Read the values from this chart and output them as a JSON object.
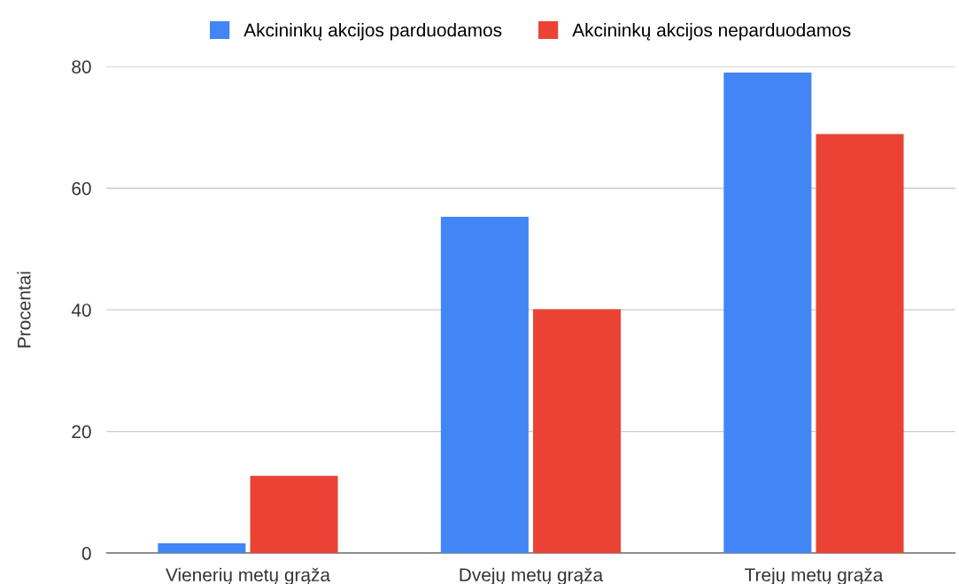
{
  "chart_data": {
    "type": "bar",
    "ylabel": "Procentai",
    "categories": [
      "Vienerių metų grąža",
      "Dvejų metų grąža",
      "Trejų metų grąža"
    ],
    "series": [
      {
        "name": "Akcininkų akcijos parduodamos",
        "color": "#4285f4",
        "values": [
          1.6,
          55.3,
          79.0
        ]
      },
      {
        "name": "Akcininkų akcijos neparduodamos",
        "color": "#ea4335",
        "values": [
          12.7,
          40.1,
          68.9
        ]
      }
    ],
    "ylim": [
      0,
      80
    ],
    "yticks": [
      0,
      20,
      40,
      60,
      80
    ],
    "grid": "y",
    "legend": "top"
  }
}
